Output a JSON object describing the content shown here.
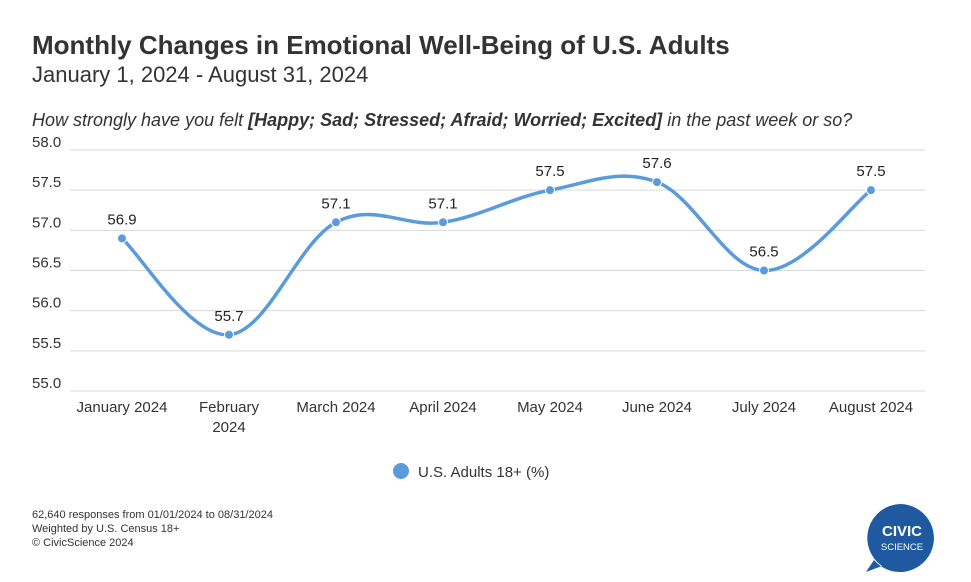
{
  "header": {
    "title": "Monthly Changes in Emotional Well-Being of U.S. Adults",
    "subtitle": "January 1, 2024 - August 31, 2024",
    "question_prefix": "How strongly have you felt ",
    "question_emphasis": "[Happy; Sad; Stressed; Afraid; Worried; Excited]",
    "question_suffix": " in the past week or so?"
  },
  "chart_data": {
    "type": "line",
    "categories": [
      [
        "January 2024"
      ],
      [
        "February",
        "2024"
      ],
      [
        "March 2024"
      ],
      [
        "April 2024"
      ],
      [
        "May 2024"
      ],
      [
        "June 2024"
      ],
      [
        "July 2024"
      ],
      [
        "August 2024"
      ]
    ],
    "series": [
      {
        "name": "U.S. Adults 18+ (%)",
        "values": [
          56.9,
          55.7,
          57.1,
          57.1,
          57.5,
          57.6,
          56.5,
          57.5
        ],
        "color": "#5b9bdc"
      }
    ],
    "data_labels": [
      "56.9",
      "55.7",
      "57.1",
      "57.1",
      "57.5",
      "57.6",
      "56.5",
      "57.5"
    ],
    "yticks": [
      "58.0",
      "57.5",
      "57.0",
      "56.5",
      "56.0",
      "55.5",
      "55.0"
    ],
    "ylim": [
      55.0,
      58.0
    ],
    "grid": true,
    "legend_position": "bottom-center",
    "xlabel": "",
    "ylabel": ""
  },
  "footer": {
    "line1": "62,640 responses from 01/01/2024 to 08/31/2024",
    "line2": "Weighted by U.S. Census 18+",
    "line3": "© CivicScience 2024"
  },
  "logo": {
    "word1": "CIVIC",
    "word2": "SCIENCE",
    "color": "#1f5aa0"
  }
}
